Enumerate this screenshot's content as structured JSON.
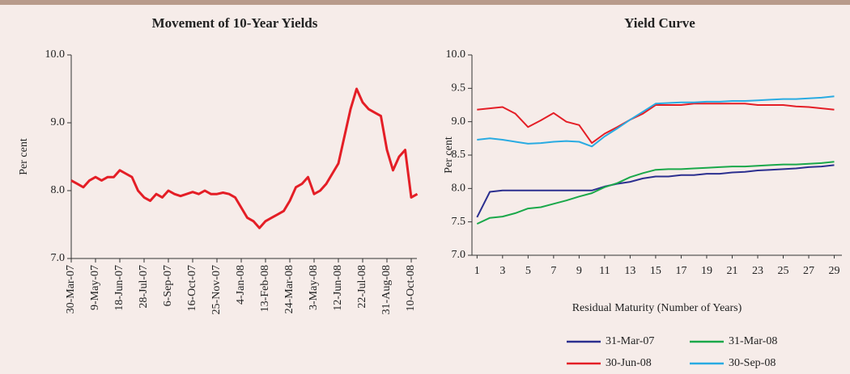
{
  "chart_data": [
    {
      "type": "line",
      "title": "Movement of 10-Year Yields",
      "ylabel": "Per cent",
      "ylim": [
        7,
        10
      ],
      "yticks": [
        {
          "value": 7,
          "label": "7.0"
        },
        {
          "value": 8,
          "label": "8.0"
        },
        {
          "value": 9,
          "label": "9.0"
        },
        {
          "value": 10,
          "label": "10.0"
        }
      ],
      "categories": [
        "30-Mar-07",
        null,
        null,
        null,
        "9-May-07",
        null,
        null,
        null,
        "18-Jun-07",
        null,
        null,
        null,
        "28-Jul-07",
        null,
        null,
        null,
        "6-Sep-07",
        null,
        null,
        null,
        "16-Oct-07",
        null,
        null,
        null,
        "25-Nov-07",
        null,
        null,
        null,
        "4-Jan-08",
        null,
        null,
        null,
        "13-Feb-08",
        null,
        null,
        null,
        "24-Mar-08",
        null,
        null,
        null,
        "3-May-08",
        null,
        null,
        null,
        "12-Jun-08",
        null,
        null,
        null,
        "22-Jul-08",
        null,
        null,
        null,
        "31-Aug-08",
        null,
        null,
        null,
        "10-Oct-08",
        null
      ],
      "values": [
        8.15,
        8.1,
        8.05,
        8.15,
        8.2,
        8.15,
        8.2,
        8.2,
        8.3,
        8.25,
        8.2,
        8.0,
        7.9,
        7.85,
        7.95,
        7.9,
        8.0,
        7.95,
        7.92,
        7.95,
        7.98,
        7.95,
        8.0,
        7.95,
        7.95,
        7.97,
        7.95,
        7.9,
        7.75,
        7.6,
        7.55,
        7.45,
        7.55,
        7.6,
        7.65,
        7.7,
        7.85,
        8.05,
        8.1,
        8.2,
        7.95,
        8.0,
        8.1,
        8.25,
        8.4,
        8.8,
        9.2,
        9.5,
        9.3,
        9.2,
        9.15,
        9.1,
        8.6,
        8.3,
        8.5,
        8.6,
        7.9,
        7.95
      ],
      "color": "#e41e26"
    },
    {
      "type": "line",
      "title": "Yield Curve",
      "ylabel": "Per cent",
      "xlabel": "Residual Maturity (Number of Years)",
      "ylim": [
        7,
        10
      ],
      "yticks": [
        {
          "value": 7,
          "label": "7.0"
        },
        7.5,
        {
          "value": 8,
          "label": "8.0"
        },
        8.5,
        {
          "value": 9,
          "label": "9.0"
        },
        9.5,
        {
          "value": 10,
          "label": "10.0"
        }
      ],
      "xlim": [
        0.6,
        29.6
      ],
      "xticks": [
        1,
        3,
        5,
        7,
        9,
        11,
        13,
        15,
        17,
        19,
        21,
        23,
        25,
        27,
        29
      ],
      "x": [
        1,
        2,
        3,
        4,
        5,
        6,
        7,
        8,
        9,
        10,
        11,
        12,
        13,
        14,
        15,
        16,
        17,
        18,
        19,
        20,
        21,
        22,
        23,
        24,
        25,
        26,
        27,
        28,
        29
      ],
      "legend": "bottom",
      "series": [
        {
          "name": "31-Mar-07",
          "color": "#2b2f8f",
          "values": [
            7.57,
            7.95,
            7.97,
            7.97,
            7.97,
            7.97,
            7.97,
            7.97,
            7.97,
            7.97,
            8.03,
            8.07,
            8.1,
            8.15,
            8.18,
            8.18,
            8.2,
            8.2,
            8.22,
            8.22,
            8.24,
            8.25,
            8.27,
            8.28,
            8.29,
            8.3,
            8.32,
            8.33,
            8.35
          ]
        },
        {
          "name": "31-Mar-08",
          "color": "#1aa84a",
          "values": [
            7.47,
            7.56,
            7.58,
            7.63,
            7.7,
            7.72,
            7.77,
            7.82,
            7.88,
            7.93,
            8.02,
            8.08,
            8.17,
            8.23,
            8.28,
            8.29,
            8.29,
            8.3,
            8.31,
            8.32,
            8.33,
            8.33,
            8.34,
            8.35,
            8.36,
            8.36,
            8.37,
            8.38,
            8.4
          ]
        },
        {
          "name": "30-Jun-08",
          "color": "#e41e26",
          "values": [
            9.18,
            9.2,
            9.22,
            9.12,
            8.92,
            9.02,
            9.13,
            9.0,
            8.95,
            8.68,
            8.82,
            8.92,
            9.03,
            9.12,
            9.25,
            9.25,
            9.25,
            9.27,
            9.27,
            9.27,
            9.27,
            9.27,
            9.25,
            9.25,
            9.25,
            9.23,
            9.22,
            9.2,
            9.18
          ]
        },
        {
          "name": "30-Sep-08",
          "color": "#29abe2",
          "values": [
            8.73,
            8.75,
            8.73,
            8.7,
            8.67,
            8.68,
            8.7,
            8.71,
            8.7,
            8.63,
            8.78,
            8.9,
            9.03,
            9.15,
            9.27,
            9.28,
            9.29,
            9.29,
            9.3,
            9.3,
            9.31,
            9.31,
            9.32,
            9.33,
            9.34,
            9.34,
            9.35,
            9.36,
            9.38
          ]
        }
      ]
    }
  ]
}
